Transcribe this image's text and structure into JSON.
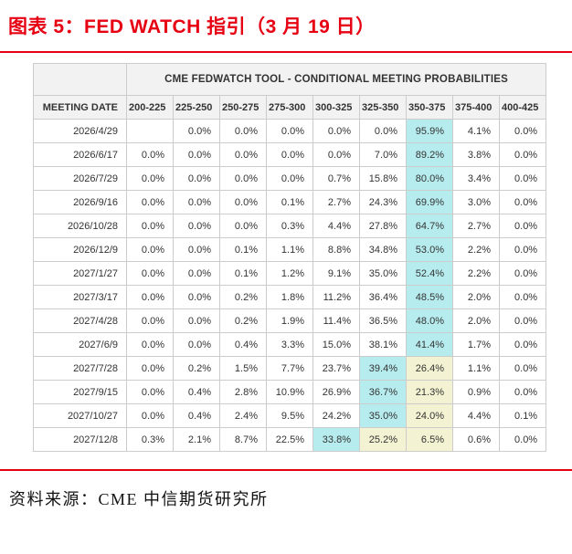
{
  "page": {
    "title": "图表 5：FED WATCH 指引（3 月 19 日）",
    "source": "资料来源：CME  中信期货研究所",
    "accent_red": "#e60012"
  },
  "table": {
    "banner": "CME FEDWATCH TOOL - CONDITIONAL MEETING PROBABILITIES",
    "date_header": "MEETING DATE",
    "rate_headers": [
      "200-225",
      "225-250",
      "250-275",
      "275-300",
      "300-325",
      "325-350",
      "350-375",
      "375-400",
      "400-425"
    ],
    "highlight_colors": {
      "cyan": "#b7ecee",
      "yellow": "#f3f2d2"
    },
    "rows": [
      {
        "date": "2026/4/29",
        "values": [
          "",
          "0.0%",
          "0.0%",
          "0.0%",
          "0.0%",
          "0.0%",
          "95.9%",
          "4.1%",
          "0.0%"
        ],
        "hl": [
          "",
          "",
          "",
          "",
          "",
          "",
          "cyan",
          "",
          ""
        ]
      },
      {
        "date": "2026/6/17",
        "values": [
          "0.0%",
          "0.0%",
          "0.0%",
          "0.0%",
          "0.0%",
          "7.0%",
          "89.2%",
          "3.8%",
          "0.0%"
        ],
        "hl": [
          "",
          "",
          "",
          "",
          "",
          "",
          "cyan",
          "",
          ""
        ]
      },
      {
        "date": "2026/7/29",
        "values": [
          "0.0%",
          "0.0%",
          "0.0%",
          "0.0%",
          "0.7%",
          "15.8%",
          "80.0%",
          "3.4%",
          "0.0%"
        ],
        "hl": [
          "",
          "",
          "",
          "",
          "",
          "",
          "cyan",
          "",
          ""
        ]
      },
      {
        "date": "2026/9/16",
        "values": [
          "0.0%",
          "0.0%",
          "0.0%",
          "0.1%",
          "2.7%",
          "24.3%",
          "69.9%",
          "3.0%",
          "0.0%"
        ],
        "hl": [
          "",
          "",
          "",
          "",
          "",
          "",
          "cyan",
          "",
          ""
        ]
      },
      {
        "date": "2026/10/28",
        "values": [
          "0.0%",
          "0.0%",
          "0.0%",
          "0.3%",
          "4.4%",
          "27.8%",
          "64.7%",
          "2.7%",
          "0.0%"
        ],
        "hl": [
          "",
          "",
          "",
          "",
          "",
          "",
          "cyan",
          "",
          ""
        ]
      },
      {
        "date": "2026/12/9",
        "values": [
          "0.0%",
          "0.0%",
          "0.1%",
          "1.1%",
          "8.8%",
          "34.8%",
          "53.0%",
          "2.2%",
          "0.0%"
        ],
        "hl": [
          "",
          "",
          "",
          "",
          "",
          "",
          "cyan",
          "",
          ""
        ]
      },
      {
        "date": "2027/1/27",
        "values": [
          "0.0%",
          "0.0%",
          "0.1%",
          "1.2%",
          "9.1%",
          "35.0%",
          "52.4%",
          "2.2%",
          "0.0%"
        ],
        "hl": [
          "",
          "",
          "",
          "",
          "",
          "",
          "cyan",
          "",
          ""
        ]
      },
      {
        "date": "2027/3/17",
        "values": [
          "0.0%",
          "0.0%",
          "0.2%",
          "1.8%",
          "11.2%",
          "36.4%",
          "48.5%",
          "2.0%",
          "0.0%"
        ],
        "hl": [
          "",
          "",
          "",
          "",
          "",
          "",
          "cyan",
          "",
          ""
        ]
      },
      {
        "date": "2027/4/28",
        "values": [
          "0.0%",
          "0.0%",
          "0.2%",
          "1.9%",
          "11.4%",
          "36.5%",
          "48.0%",
          "2.0%",
          "0.0%"
        ],
        "hl": [
          "",
          "",
          "",
          "",
          "",
          "",
          "cyan",
          "",
          ""
        ]
      },
      {
        "date": "2027/6/9",
        "values": [
          "0.0%",
          "0.0%",
          "0.4%",
          "3.3%",
          "15.0%",
          "38.1%",
          "41.4%",
          "1.7%",
          "0.0%"
        ],
        "hl": [
          "",
          "",
          "",
          "",
          "",
          "",
          "cyan",
          "",
          ""
        ]
      },
      {
        "date": "2027/7/28",
        "values": [
          "0.0%",
          "0.2%",
          "1.5%",
          "7.7%",
          "23.7%",
          "39.4%",
          "26.4%",
          "1.1%",
          "0.0%"
        ],
        "hl": [
          "",
          "",
          "",
          "",
          "",
          "cyan",
          "yellow",
          "",
          ""
        ]
      },
      {
        "date": "2027/9/15",
        "values": [
          "0.0%",
          "0.4%",
          "2.8%",
          "10.9%",
          "26.9%",
          "36.7%",
          "21.3%",
          "0.9%",
          "0.0%"
        ],
        "hl": [
          "",
          "",
          "",
          "",
          "",
          "cyan",
          "yellow",
          "",
          ""
        ]
      },
      {
        "date": "2027/10/27",
        "values": [
          "0.0%",
          "0.4%",
          "2.4%",
          "9.5%",
          "24.2%",
          "35.0%",
          "24.0%",
          "4.4%",
          "0.1%"
        ],
        "hl": [
          "",
          "",
          "",
          "",
          "",
          "cyan",
          "yellow",
          "",
          ""
        ]
      },
      {
        "date": "2027/12/8",
        "values": [
          "0.3%",
          "2.1%",
          "8.7%",
          "22.5%",
          "33.8%",
          "25.2%",
          "6.5%",
          "0.6%",
          "0.0%"
        ],
        "hl": [
          "",
          "",
          "",
          "",
          "cyan",
          "yellow",
          "yellow",
          "",
          ""
        ]
      }
    ]
  }
}
